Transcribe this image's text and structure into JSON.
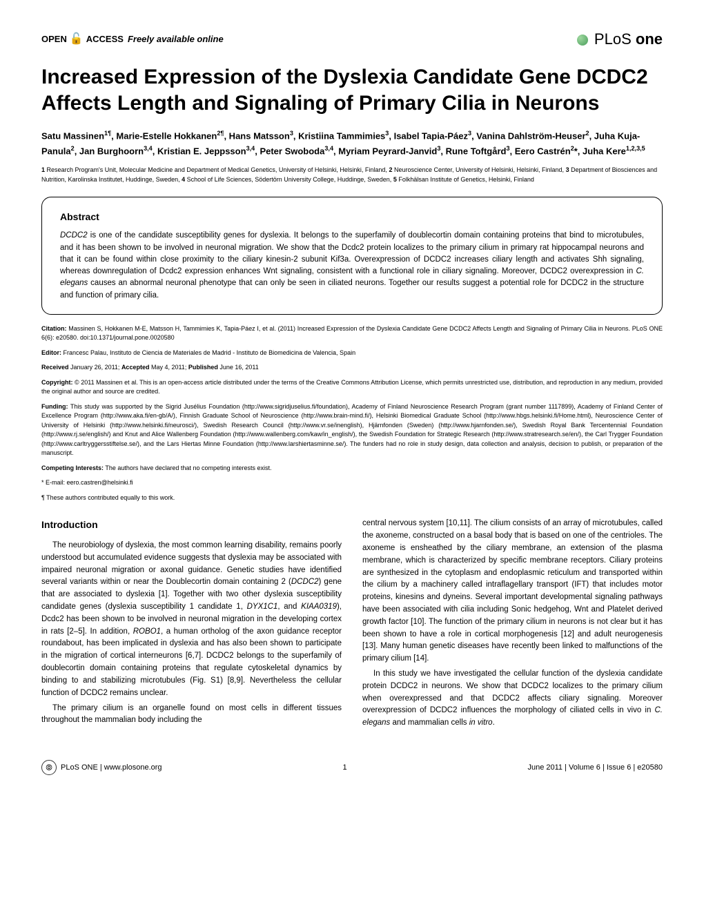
{
  "header": {
    "open_access_prefix": "OPEN",
    "open_access_mid": "ACCESS",
    "open_access_suffix": "Freely available online",
    "journal_logo_light": "PLoS",
    "journal_logo_bold": "one"
  },
  "title": "Increased Expression of the Dyslexia Candidate Gene DCDC2 Affects Length and Signaling of Primary Cilia in Neurons",
  "authors_html": "Satu Massinen<sup>1¶</sup>, Marie-Estelle Hokkanen<sup>2¶</sup>, Hans Matsson<sup>3</sup>, Kristiina Tammimies<sup>3</sup>, Isabel Tapia-Páez<sup>3</sup>, Vanina Dahlström-Heuser<sup>2</sup>, Juha Kuja-Panula<sup>2</sup>, Jan Burghoorn<sup>3,4</sup>, Kristian E. Jeppsson<sup>3,4</sup>, Peter Swoboda<sup>3,4</sup>, Myriam Peyrard-Janvid<sup>3</sup>, Rune Toftgård<sup>3</sup>, Eero Castrén<sup>2</sup>*, Juha Kere<sup>1,2,3,5</sup>",
  "affiliations_html": "<b>1</b> Research Program's Unit, Molecular Medicine and Department of Medical Genetics, University of Helsinki, Helsinki, Finland, <b>2</b> Neuroscience Center, University of Helsinki, Helsinki, Finland, <b>3</b> Department of Biosciences and Nutrition, Karolinska Institutet, Huddinge, Sweden, <b>4</b> School of Life Sciences, Södertörn University College, Huddinge, Sweden, <b>5</b> Folkhälsan Institute of Genetics, Helsinki, Finland",
  "abstract": {
    "heading": "Abstract",
    "text_html": "<em>DCDC2</em> is one of the candidate susceptibility genes for dyslexia. It belongs to the superfamily of doublecortin domain containing proteins that bind to microtubules, and it has been shown to be involved in neuronal migration. We show that the Dcdc2 protein localizes to the primary cilium in primary rat hippocampal neurons and that it can be found within close proximity to the ciliary kinesin-2 subunit Kif3a. Overexpression of DCDC2 increases ciliary length and activates Shh signaling, whereas downregulation of Dcdc2 expression enhances Wnt signaling, consistent with a functional role in ciliary signaling. Moreover, DCDC2 overexpression in <em>C. elegans</em> causes an abnormal neuronal phenotype that can only be seen in ciliated neurons. Together our results suggest a potential role for DCDC2 in the structure and function of primary cilia."
  },
  "meta": {
    "citation": "Massinen S, Hokkanen M-E, Matsson H, Tammimies K, Tapia-Páez I, et al. (2011) Increased Expression of the Dyslexia Candidate Gene DCDC2 Affects Length and Signaling of Primary Cilia in Neurons. PLoS ONE 6(6): e20580. doi:10.1371/journal.pone.0020580",
    "editor": "Francesc Palau, Instituto de Ciencia de Materiales de Madrid - Instituto de Biomedicina de Valencia, Spain",
    "dates": "January 26, 2011; <b>Accepted</b> May 4, 2011; <b>Published</b> June 16, 2011",
    "copyright": "© 2011 Massinen et al. This is an open-access article distributed under the terms of the Creative Commons Attribution License, which permits unrestricted use, distribution, and reproduction in any medium, provided the original author and source are credited.",
    "funding": "This study was supported by the Sigrid Jusélius Foundation (http://www.sigridjuselius.fi/foundation), Academy of Finland Neuroscience Research Program (grant number 1117899), Academy of Finland Center of Excellence Program (http://www.aka.fi/en-gb/A/), Finnish Graduate School of Neuroscience (http://www.brain-mind.fi/), Helsinki Biomedical Graduate School (http://www.hbgs.helsinki.fi/Home.html), Neuroscience Center of University of Helsinki (http://www.helsinki.fi/neurosci/), Swedish Research Council (http://www.vr.se/inenglish), Hjärnfonden (Sweden) (http://www.hjarnfonden.se/), Swedish Royal Bank Tercentennial Foundation (http://www.rj.se/english/) and Knut and Alice Wallenberg Foundation (http://www.wallenberg.com/kaw/in_english/), the Swedish Foundation for Strategic Research (http://www.stratresearch.se/en/), the Carl Trygger Foundation (http://www.carltryggersstiftelse.se/), and the Lars Hiertas Minne Foundation (http://www.larshiertasminne.se/). The funders had no role in study design, data collection and analysis, decision to publish, or preparation of the manuscript.",
    "competing": "The authors have declared that no competing interests exist.",
    "email": "* E-mail: eero.castren@helsinki.fi",
    "equal": "¶ These authors contributed equally to this work."
  },
  "body": {
    "intro_heading": "Introduction",
    "col1_p1_html": "The neurobiology of dyslexia, the most common learning disability, remains poorly understood but accumulated evidence suggests that dyslexia may be associated with impaired neuronal migration or axonal guidance. Genetic studies have identified several variants within or near the Doublecortin domain containing 2 (<em>DCDC2</em>) gene that are associated to dyslexia [1]. Together with two other dyslexia susceptibility candidate genes (dyslexia susceptibility 1 candidate 1, <em>DYX1C1</em>, and <em>KIAA0319</em>), Dcdc2 has been shown to be involved in neuronal migration in the developing cortex in rats [2–5]. In addition, <em>ROBO1</em>, a human ortholog of the axon guidance receptor roundabout, has been implicated in dyslexia and has also been shown to participate in the migration of cortical interneurons [6,7]. DCDC2 belongs to the superfamily of doublecortin domain containing proteins that regulate cytoskeletal dynamics by binding to and stabilizing microtubules (Fig. S1) [8,9]. Nevertheless the cellular function of DCDC2 remains unclear.",
    "col1_p2": "The primary cilium is an organelle found on most cells in different tissues throughout the mammalian body including the",
    "col2_p1": "central nervous system [10,11]. The cilium consists of an array of microtubules, called the axoneme, constructed on a basal body that is based on one of the centrioles. The axoneme is ensheathed by the ciliary membrane, an extension of the plasma membrane, which is characterized by specific membrane receptors. Ciliary proteins are synthesized in the cytoplasm and endoplasmic reticulum and transported within the cilium by a machinery called intraflagellary transport (IFT) that includes motor proteins, kinesins and dyneins. Several important developmental signaling pathways have been associated with cilia including Sonic hedgehog, Wnt and Platelet derived growth factor [10]. The function of the primary cilium in neurons is not clear but it has been shown to have a role in cortical morphogenesis [12] and adult neurogenesis [13]. Many human genetic diseases have recently been linked to malfunctions of the primary cilium [14].",
    "col2_p2_html": "In this study we have investigated the cellular function of the dyslexia candidate protein DCDC2 in neurons. We show that DCDC2 localizes to the primary cilium when overexpressed and that DCDC2 affects ciliary signaling. Moreover overexpression of DCDC2 influences the morphology of ciliated cells in vivo in <em>C. elegans</em> and mammalian cells <em>in vitro</em>."
  },
  "footer": {
    "journal": "PLoS ONE | www.plosone.org",
    "page": "1",
    "issue": "June 2011 | Volume 6 | Issue 6 | e20580"
  }
}
